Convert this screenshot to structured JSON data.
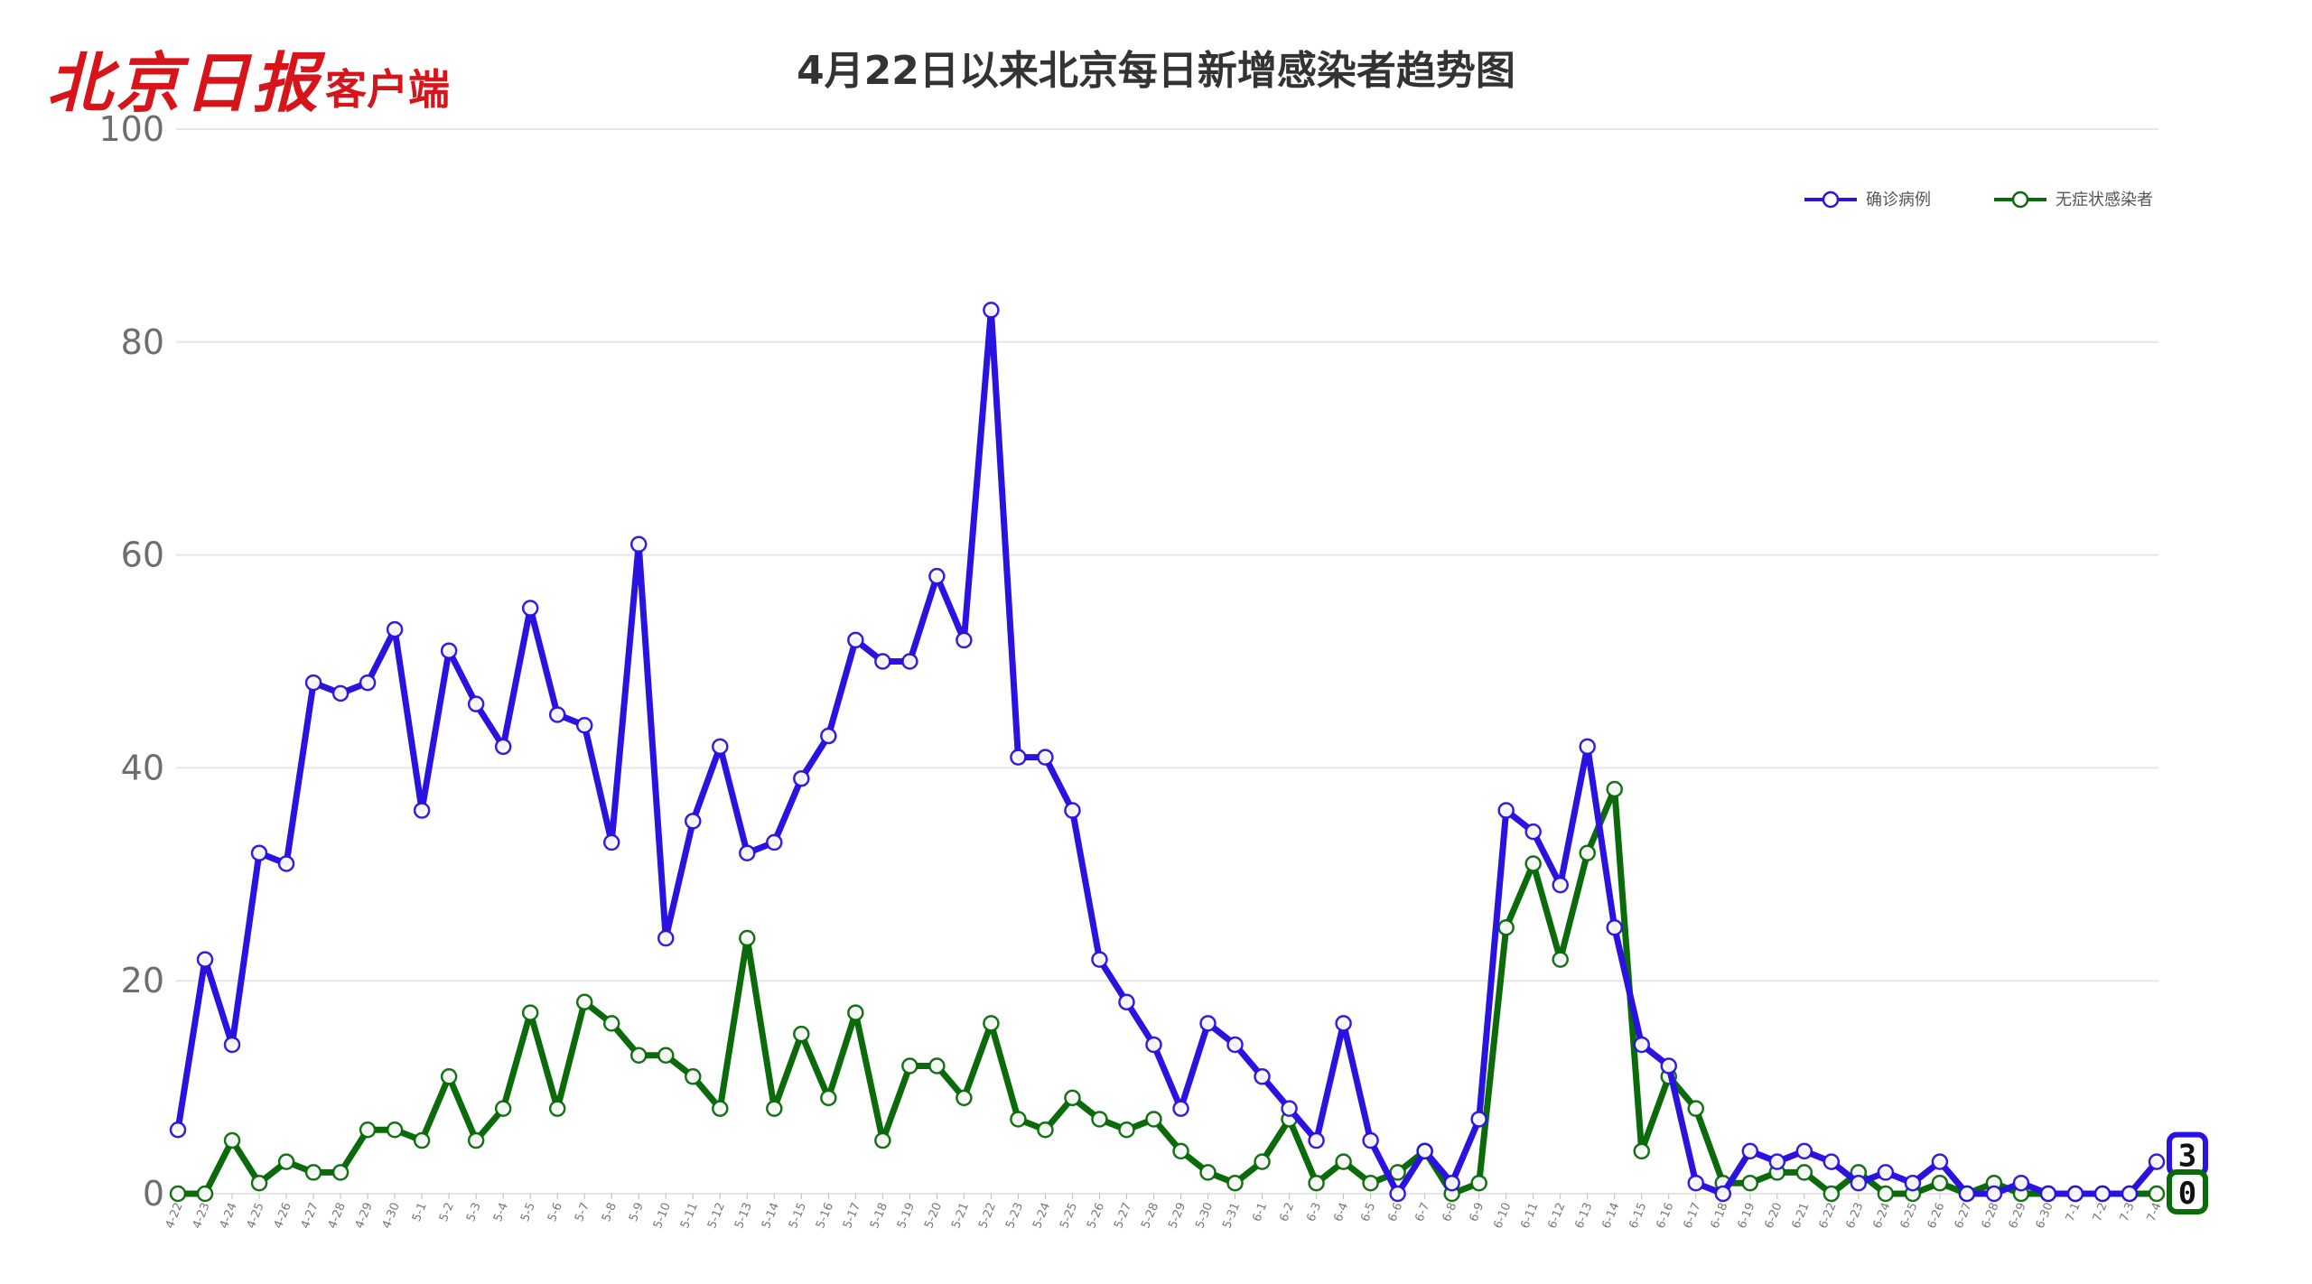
{
  "header": {
    "logo_brand": "北京日报",
    "logo_sub": "客户端",
    "title": "4月22日以来北京每日新增感染者趋势图"
  },
  "colors": {
    "confirmed": "#2a12e0",
    "asymptomatic": "#0b6b0b",
    "grid": "#e6e6e6",
    "marker_fill": "#ffffff"
  },
  "chart_data": {
    "type": "line",
    "title": "4月22日以来北京每日新增感染者趋势图",
    "xlabel": "",
    "ylabel": "",
    "ylim": [
      0,
      100
    ],
    "yticks": [
      0,
      20,
      40,
      60,
      80,
      100
    ],
    "grid": true,
    "legend_position": "top-right",
    "categories": [
      "4-22",
      "4-23",
      "4-24",
      "4-25",
      "4-26",
      "4-27",
      "4-28",
      "4-29",
      "4-30",
      "5-1",
      "5-2",
      "5-3",
      "5-4",
      "5-5",
      "5-6",
      "5-7",
      "5-8",
      "5-9",
      "5-10",
      "5-11",
      "5-12",
      "5-13",
      "5-14",
      "5-15",
      "5-16",
      "5-17",
      "5-18",
      "5-19",
      "5-20",
      "5-21",
      "5-22",
      "5-23",
      "5-24",
      "5-25",
      "5-26",
      "5-27",
      "5-28",
      "5-29",
      "5-30",
      "5-31",
      "6-1",
      "6-2",
      "6-3",
      "6-4",
      "6-5",
      "6-6",
      "6-7",
      "6-8",
      "6-9",
      "6-10",
      "6-11",
      "6-12",
      "6-13",
      "6-14",
      "6-15",
      "6-16",
      "6-17",
      "6-18",
      "6-19",
      "6-20",
      "6-21",
      "6-22",
      "6-23",
      "6-24",
      "6-25",
      "6-26",
      "6-27",
      "6-28",
      "6-29",
      "6-30",
      "7-1",
      "7-2",
      "7-3",
      "7-4"
    ],
    "series": [
      {
        "name": "确诊病例",
        "color": "#2a12e0",
        "values": [
          6,
          22,
          14,
          32,
          31,
          48,
          47,
          48,
          53,
          36,
          51,
          46,
          42,
          55,
          45,
          44,
          33,
          61,
          24,
          35,
          42,
          32,
          33,
          39,
          43,
          52,
          50,
          50,
          58,
          52,
          83,
          41,
          41,
          36,
          22,
          18,
          14,
          8,
          16,
          14,
          11,
          8,
          5,
          16,
          5,
          0,
          4,
          1,
          7,
          36,
          34,
          29,
          42,
          25,
          14,
          12,
          1,
          0,
          4,
          3,
          4,
          3,
          1,
          2,
          1,
          3,
          0,
          0,
          1,
          0,
          0,
          0,
          0,
          3
        ]
      },
      {
        "name": "无症状感染者",
        "color": "#0b6b0b",
        "values": [
          0,
          0,
          5,
          1,
          3,
          2,
          2,
          6,
          6,
          5,
          11,
          5,
          8,
          17,
          8,
          18,
          16,
          13,
          13,
          11,
          8,
          24,
          8,
          15,
          9,
          17,
          5,
          12,
          12,
          9,
          16,
          7,
          6,
          9,
          7,
          6,
          7,
          4,
          2,
          1,
          3,
          7,
          1,
          3,
          1,
          2,
          4,
          0,
          1,
          25,
          31,
          22,
          32,
          38,
          4,
          11,
          8,
          1,
          1,
          2,
          2,
          0,
          2,
          0,
          0,
          1,
          0,
          1,
          0,
          0,
          0,
          0,
          0,
          0
        ]
      }
    ],
    "end_labels": [
      "3",
      "0"
    ]
  }
}
